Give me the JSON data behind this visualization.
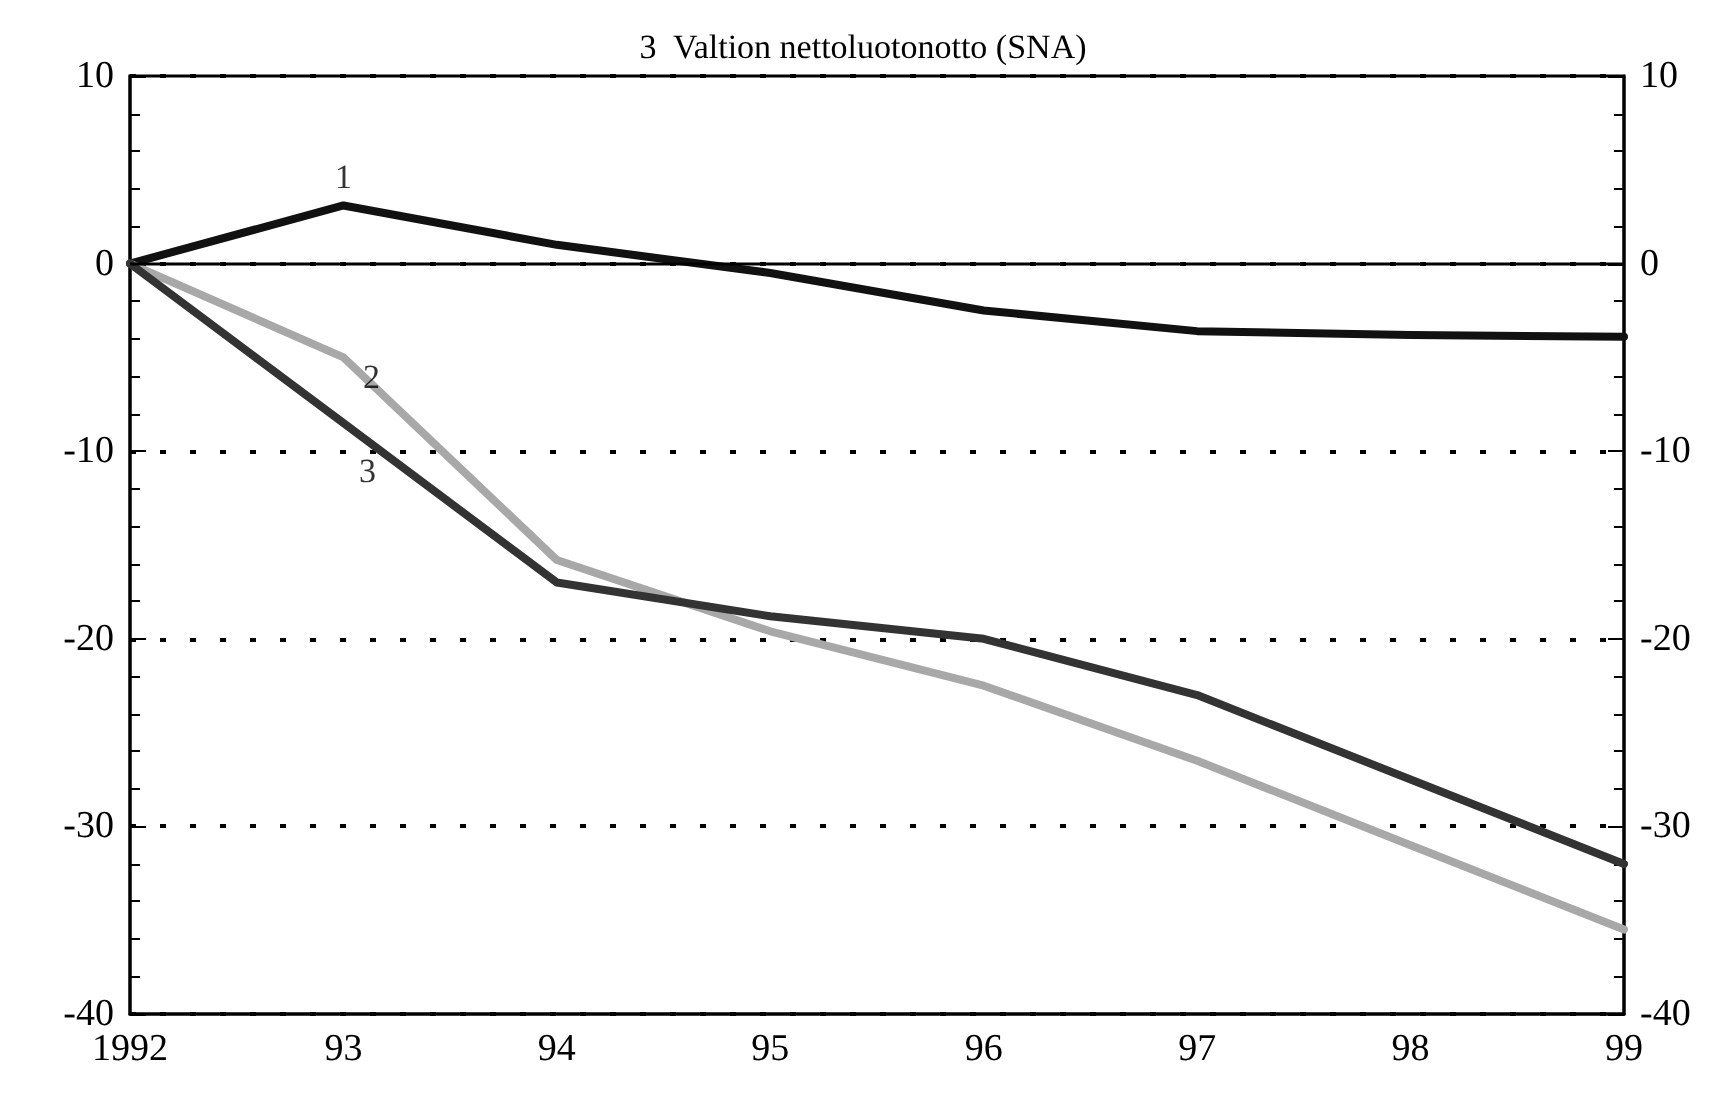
{
  "chart_data": {
    "type": "line",
    "title": "3  Valtion nettoluotonotto (SNA)",
    "categories": [
      "1992",
      "93",
      "94",
      "95",
      "96",
      "97",
      "98",
      "99"
    ],
    "series": [
      {
        "color": "#111111",
        "values": [
          0,
          3.1,
          1,
          -0.5,
          -2.5,
          -3.6,
          -3.8,
          -3.9
        ]
      },
      {
        "color": "#a8a8a8",
        "values": [
          0,
          -5,
          -15.8,
          -19.6,
          -22.5,
          -26.5,
          -31,
          -35.5
        ]
      },
      {
        "color": "#333333",
        "values": [
          0,
          -8.5,
          -17,
          -18.8,
          -20,
          -23,
          -27.5,
          -32
        ]
      }
    ],
    "annotations": [
      {
        "text": "1",
        "x": "93",
        "y": 3.1
      },
      {
        "text": "2",
        "x": "93",
        "y": -5
      },
      {
        "text": "3",
        "x": "93",
        "y": -8.5
      }
    ],
    "ylim": [
      -40,
      10
    ],
    "yticks": [
      -40,
      -30,
      -20,
      -10,
      0,
      10
    ],
    "y2lim": [
      -40,
      10
    ],
    "y2ticks": [
      -40,
      -30,
      -20,
      -10,
      0,
      10
    ],
    "ref_lines": [
      {
        "axis": "y",
        "value": 0,
        "line_style": "solid",
        "color": "#000000"
      }
    ],
    "grid": "y",
    "marker": "none",
    "line_style": "solid"
  }
}
